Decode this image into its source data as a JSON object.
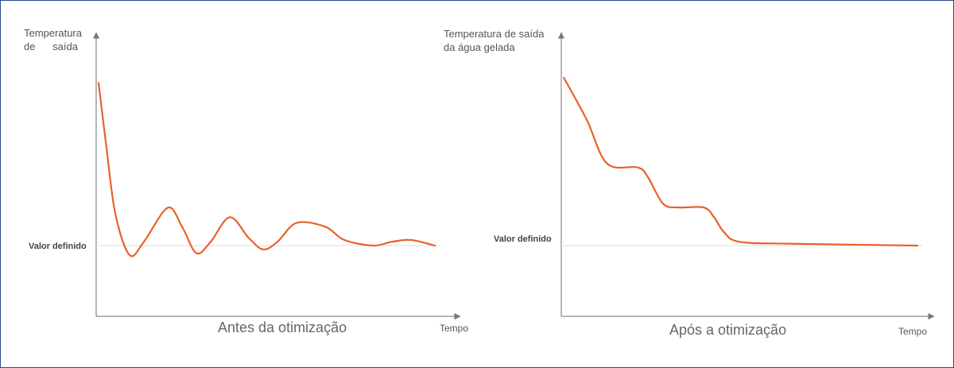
{
  "chart_data": [
    {
      "type": "line",
      "title": "Antes da otimização",
      "ylabel_lines": [
        "Temperatura",
        "de      saída"
      ],
      "xlabel": "Tempo",
      "setpoint_label": "Valor definido",
      "series": [
        {
          "points": [
            [
              0.5,
              0.86
            ],
            [
              2,
              0.55
            ],
            [
              4,
              0.17
            ],
            [
              7,
              -0.05
            ],
            [
              10,
              0.02
            ],
            [
              15,
              0.2
            ],
            [
              18,
              0.1
            ],
            [
              21,
              -0.04
            ],
            [
              24,
              0.02
            ],
            [
              28,
              0.15
            ],
            [
              32,
              0.04
            ],
            [
              35,
              -0.02
            ],
            [
              38,
              0.02
            ],
            [
              42,
              0.12
            ],
            [
              48,
              0.1
            ],
            [
              52,
              0.03
            ],
            [
              58,
              0.0
            ],
            [
              62,
              0.02
            ],
            [
              66,
              0.03
            ],
            [
              71,
              0.0
            ]
          ]
        }
      ],
      "color": "#e8622a"
    },
    {
      "type": "line",
      "title": "Após a otimização",
      "ylabel_lines": [
        "Temperatura de saída",
        "da água gelada"
      ],
      "xlabel": "Tempo",
      "setpoint_label": "Valor definido",
      "series": [
        {
          "points": [
            [
              0.5,
              0.88
            ],
            [
              5,
              0.66
            ],
            [
              9,
              0.43
            ],
            [
              15,
              0.41
            ],
            [
              17,
              0.36
            ],
            [
              20,
              0.22
            ],
            [
              23,
              0.2
            ],
            [
              28,
              0.2
            ],
            [
              30,
              0.15
            ],
            [
              32,
              0.07
            ],
            [
              35,
              0.02
            ],
            [
              45,
              0.01
            ],
            [
              70,
              0.0
            ]
          ]
        }
      ],
      "color": "#e8622a"
    }
  ]
}
